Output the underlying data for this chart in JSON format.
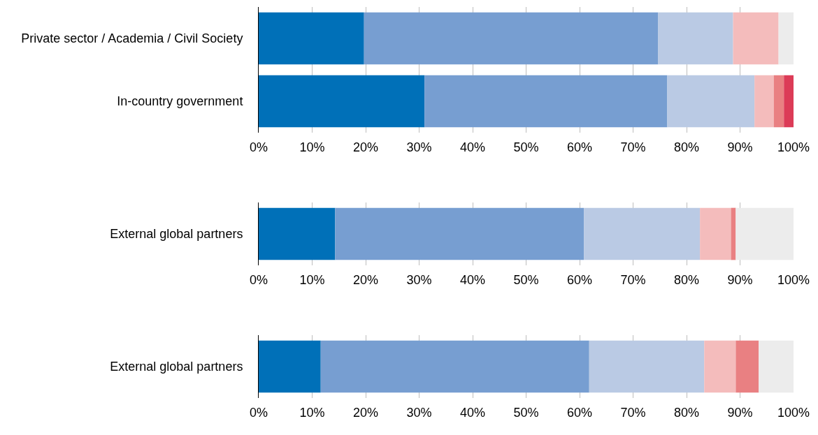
{
  "chart_data": [
    {
      "type": "bar",
      "orientation": "horizontal",
      "stacked": true,
      "grid": "x",
      "categories": [
        "Private sector / Academia / Civil Society",
        "In-country government"
      ],
      "xlim": [
        0,
        100
      ],
      "xticks": [
        {
          "value": 0,
          "label": "0%"
        },
        {
          "value": 10,
          "label": "10%"
        },
        {
          "value": 20,
          "label": "20%"
        },
        {
          "value": 30,
          "label": "30%"
        },
        {
          "value": 40,
          "label": "40%"
        },
        {
          "value": 50,
          "label": "50%"
        },
        {
          "value": 60,
          "label": "60%"
        },
        {
          "value": 70,
          "label": "70%"
        },
        {
          "value": 80,
          "label": "80%"
        },
        {
          "value": 90,
          "label": "90%"
        },
        {
          "value": 100,
          "label": "100%"
        }
      ],
      "series": [
        {
          "color": "#0070b8",
          "values": [
            19.7,
            31.0
          ]
        },
        {
          "color": "#779ed1",
          "values": [
            55.0,
            45.4
          ]
        },
        {
          "color": "#bacae4",
          "values": [
            14.0,
            16.3
          ]
        },
        {
          "color": "#f4bcbc",
          "values": [
            8.5,
            3.6
          ]
        },
        {
          "color": "#e98082",
          "values": [
            null,
            1.9
          ]
        },
        {
          "color": "#dc3b57",
          "values": [
            null,
            1.8
          ]
        },
        {
          "color": "#ececec",
          "values": [
            2.8,
            null
          ]
        }
      ]
    },
    {
      "type": "bar",
      "orientation": "horizontal",
      "stacked": true,
      "grid": "x",
      "categories": [
        "External global partners"
      ],
      "xlim": [
        0,
        100
      ],
      "xticks": [
        {
          "value": 0,
          "label": "0%"
        },
        {
          "value": 10,
          "label": "10%"
        },
        {
          "value": 20,
          "label": "20%"
        },
        {
          "value": 30,
          "label": "30%"
        },
        {
          "value": 40,
          "label": "40%"
        },
        {
          "value": 50,
          "label": "50%"
        },
        {
          "value": 60,
          "label": "60%"
        },
        {
          "value": 70,
          "label": "70%"
        },
        {
          "value": 80,
          "label": "80%"
        },
        {
          "value": 90,
          "label": "90%"
        },
        {
          "value": 100,
          "label": "100%"
        }
      ],
      "series": [
        {
          "color": "#0070b8",
          "values": [
            14.3
          ]
        },
        {
          "color": "#779ed1",
          "values": [
            46.5
          ]
        },
        {
          "color": "#bacae4",
          "values": [
            21.7
          ]
        },
        {
          "color": "#f4bcbc",
          "values": [
            5.8
          ]
        },
        {
          "color": "#e98082",
          "values": [
            0.9
          ]
        },
        {
          "color": "#ececec",
          "values": [
            10.8
          ]
        }
      ]
    },
    {
      "type": "bar",
      "orientation": "horizontal",
      "stacked": true,
      "grid": "x",
      "categories": [
        "External global partners"
      ],
      "xlim": [
        0,
        100
      ],
      "xticks": [
        {
          "value": 0,
          "label": "0%"
        },
        {
          "value": 10,
          "label": "10%"
        },
        {
          "value": 20,
          "label": "20%"
        },
        {
          "value": 30,
          "label": "30%"
        },
        {
          "value": 40,
          "label": "40%"
        },
        {
          "value": 50,
          "label": "50%"
        },
        {
          "value": 60,
          "label": "60%"
        },
        {
          "value": 70,
          "label": "70%"
        },
        {
          "value": 80,
          "label": "80%"
        },
        {
          "value": 90,
          "label": "90%"
        },
        {
          "value": 100,
          "label": "100%"
        }
      ],
      "series": [
        {
          "color": "#0070b8",
          "values": [
            11.6
          ]
        },
        {
          "color": "#779ed1",
          "values": [
            50.2
          ]
        },
        {
          "color": "#bacae4",
          "values": [
            21.5
          ]
        },
        {
          "color": "#f4bcbc",
          "values": [
            5.9
          ]
        },
        {
          "color": "#e98082",
          "values": [
            4.3
          ]
        },
        {
          "color": "#ececec",
          "values": [
            6.5
          ]
        }
      ]
    }
  ]
}
